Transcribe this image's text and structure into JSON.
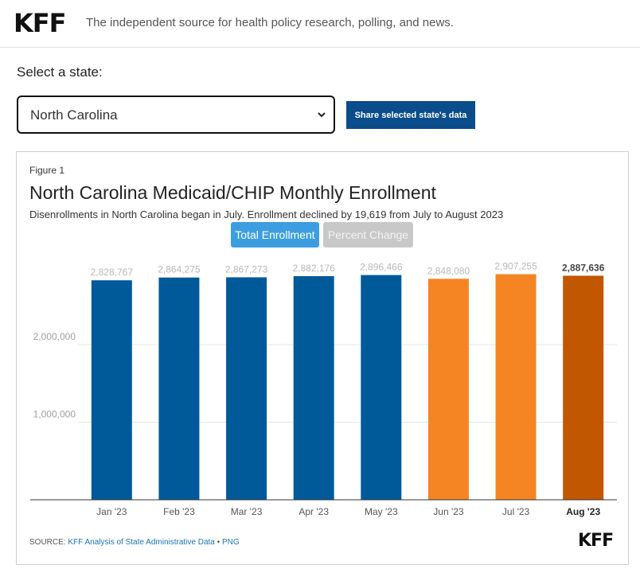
{
  "header": {
    "logo": "KFF",
    "tagline": "The independent source for health policy research, polling, and news."
  },
  "state_selector": {
    "label": "Select a state:",
    "selected": "North Carolina",
    "share_button": "Share selected state's data"
  },
  "figure": {
    "label": "Figure 1",
    "title": "North Carolina Medicaid/CHIP Monthly Enrollment",
    "subtitle": "Disenrollments in North Carolina began in July. Enrollment declined by 19,619 from July to August 2023",
    "toggles": {
      "total": "Total Enrollment",
      "percent": "Percent Change"
    },
    "source_prefix": "SOURCE: ",
    "source_link": "KFF Analysis of State Administrative Data",
    "source_sep": " • ",
    "png_link": "PNG",
    "logo": "KFF"
  },
  "colors": {
    "pre_disenrollment": "#005a9a",
    "disenrollment": "#f58522",
    "latest": "#c15700",
    "toggle_active": "#3c9ee0",
    "toggle_inactive": "#c8c8c8"
  },
  "chart_data": {
    "type": "bar",
    "categories": [
      "Jan '23",
      "Feb '23",
      "Mar '23",
      "Apr '23",
      "May '23",
      "Jun '23",
      "Jul '23",
      "Aug '23"
    ],
    "values": [
      2828767,
      2864275,
      2867273,
      2882176,
      2896466,
      2848080,
      2907255,
      2887636
    ],
    "data_labels": [
      "2,828,767",
      "2,864,275",
      "2,867,273",
      "2,882,176",
      "2,896,466",
      "2,848,080",
      "2,907,255",
      "2,887,636"
    ],
    "bar_colors": [
      "#005a9a",
      "#005a9a",
      "#005a9a",
      "#005a9a",
      "#005a9a",
      "#f58522",
      "#f58522",
      "#c15700"
    ],
    "highlight_index": 7,
    "y_ticks": [
      1000000,
      2000000
    ],
    "y_tick_labels": [
      "1,000,000",
      "2,000,000"
    ],
    "ylim": [
      0,
      3100000
    ],
    "grid": true,
    "title": "North Carolina Medicaid/CHIP Monthly Enrollment",
    "xlabel": "",
    "ylabel": ""
  }
}
